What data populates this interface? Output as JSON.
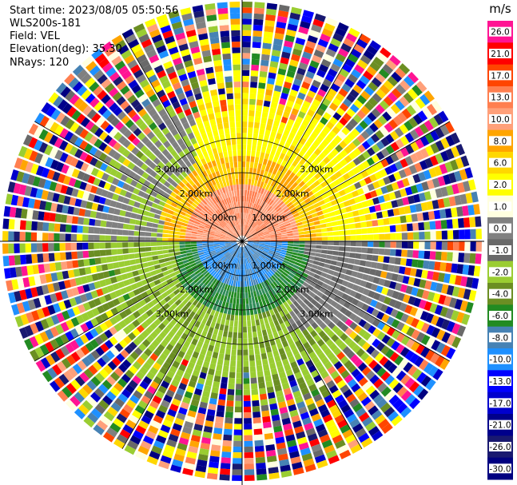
{
  "header": {
    "start_time": "Start time: 2023/08/05 05:50:56",
    "instrument": "WLS200s-181",
    "field": "Field: VEL",
    "elevation": "Elevation(deg): 35.30",
    "nrays": "NRays: 120"
  },
  "chart_data": {
    "type": "heatmap",
    "projection": "polar PPI",
    "title": "",
    "unit": "m/s",
    "rings": [
      {
        "label": "1.00km"
      },
      {
        "label": "2.00km"
      },
      {
        "label": "3.00km"
      }
    ],
    "colorbar": {
      "unit": "m/s",
      "ticks": [
        "26.0",
        "21.0",
        "17.0",
        "13.0",
        "10.0",
        "8.0",
        "6.0",
        "2.0",
        "1.0",
        "0.0",
        "-1.0",
        "-2.0",
        "-4.0",
        "-6.0",
        "-8.0",
        "-10.0",
        "-13.0",
        "-17.0",
        "-21.0",
        "-26.0",
        "-30.0"
      ],
      "colors": [
        "#ff1493",
        "#ff0000",
        "#ff4500",
        "#ff7f50",
        "#ffa07a",
        "#ffa500",
        "#ffd700",
        "#ffff00",
        "#ffffe0",
        "#808080",
        "#696969",
        "#9acd32",
        "#6b8e23",
        "#228b22",
        "#4682b4",
        "#1e90ff",
        "#0000ff",
        "#0000cd",
        "#00008b",
        "#191970",
        "#000080"
      ]
    }
  }
}
